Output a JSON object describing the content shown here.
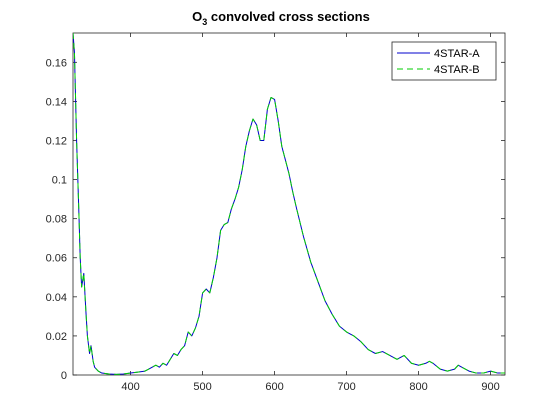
{
  "chart_data": {
    "type": "line",
    "title": "O3 convolved cross sections",
    "title_parts": {
      "base": "O",
      "sub": "3",
      "rest": " convolved cross sections"
    },
    "xlabel": "",
    "ylabel": "",
    "xlim": [
      320,
      920
    ],
    "ylim": [
      0,
      0.175
    ],
    "xticks": [
      400,
      500,
      600,
      700,
      800,
      900
    ],
    "yticks": [
      0,
      0.02,
      0.04,
      0.06,
      0.08,
      0.1,
      0.12,
      0.14,
      0.16
    ],
    "xtick_labels": [
      "400",
      "500",
      "600",
      "700",
      "800",
      "900"
    ],
    "ytick_labels": [
      "0",
      "0.02",
      "0.04",
      "0.06",
      "0.08",
      "0.1",
      "0.12",
      "0.14",
      "0.16"
    ],
    "grid": false,
    "legend_position": "top-right",
    "x": [
      320,
      322,
      325,
      328,
      330,
      332,
      335,
      338,
      340,
      343,
      345,
      348,
      350,
      355,
      360,
      370,
      380,
      390,
      400,
      410,
      420,
      425,
      430,
      435,
      440,
      445,
      450,
      455,
      460,
      465,
      470,
      475,
      480,
      485,
      490,
      495,
      500,
      505,
      510,
      515,
      520,
      525,
      530,
      535,
      540,
      545,
      550,
      555,
      560,
      565,
      570,
      575,
      580,
      585,
      590,
      595,
      600,
      605,
      610,
      615,
      620,
      625,
      630,
      640,
      650,
      660,
      670,
      680,
      690,
      700,
      710,
      720,
      730,
      740,
      750,
      760,
      770,
      780,
      790,
      800,
      810,
      815,
      820,
      830,
      840,
      850,
      855,
      860,
      870,
      880,
      890,
      900,
      910,
      920
    ],
    "series": [
      {
        "name": "4STAR-A",
        "color": "#0000cc",
        "style": "solid",
        "values": [
          0.175,
          0.165,
          0.12,
          0.085,
          0.06,
          0.045,
          0.052,
          0.032,
          0.02,
          0.011,
          0.015,
          0.007,
          0.004,
          0.002,
          0.001,
          0.0005,
          0.0003,
          0.0005,
          0.001,
          0.0015,
          0.002,
          0.003,
          0.004,
          0.005,
          0.004,
          0.006,
          0.005,
          0.008,
          0.011,
          0.01,
          0.013,
          0.015,
          0.022,
          0.02,
          0.024,
          0.03,
          0.042,
          0.044,
          0.042,
          0.05,
          0.06,
          0.074,
          0.077,
          0.078,
          0.085,
          0.09,
          0.096,
          0.105,
          0.117,
          0.125,
          0.131,
          0.128,
          0.12,
          0.12,
          0.136,
          0.142,
          0.141,
          0.13,
          0.117,
          0.11,
          0.103,
          0.094,
          0.086,
          0.071,
          0.058,
          0.048,
          0.038,
          0.031,
          0.025,
          0.022,
          0.02,
          0.017,
          0.013,
          0.011,
          0.012,
          0.01,
          0.008,
          0.01,
          0.006,
          0.005,
          0.006,
          0.007,
          0.006,
          0.003,
          0.002,
          0.003,
          0.005,
          0.004,
          0.002,
          0.001,
          0.001,
          0.002,
          0.001,
          0.001
        ]
      },
      {
        "name": "4STAR-B",
        "color": "#00cc00",
        "style": "dashed",
        "values": [
          0.175,
          0.165,
          0.12,
          0.085,
          0.06,
          0.045,
          0.052,
          0.032,
          0.02,
          0.011,
          0.015,
          0.007,
          0.004,
          0.002,
          0.001,
          0.0005,
          0.0003,
          0.0005,
          0.001,
          0.0015,
          0.002,
          0.003,
          0.004,
          0.005,
          0.004,
          0.006,
          0.005,
          0.008,
          0.011,
          0.01,
          0.013,
          0.015,
          0.022,
          0.02,
          0.024,
          0.03,
          0.042,
          0.044,
          0.042,
          0.05,
          0.06,
          0.074,
          0.077,
          0.078,
          0.085,
          0.09,
          0.096,
          0.105,
          0.117,
          0.125,
          0.131,
          0.128,
          0.12,
          0.12,
          0.136,
          0.142,
          0.141,
          0.13,
          0.117,
          0.11,
          0.103,
          0.094,
          0.086,
          0.071,
          0.058,
          0.048,
          0.038,
          0.031,
          0.025,
          0.022,
          0.02,
          0.017,
          0.013,
          0.011,
          0.012,
          0.01,
          0.008,
          0.01,
          0.006,
          0.005,
          0.006,
          0.007,
          0.006,
          0.003,
          0.002,
          0.003,
          0.005,
          0.004,
          0.002,
          0.001,
          0.001,
          0.002,
          0.001,
          0.001
        ]
      }
    ]
  }
}
